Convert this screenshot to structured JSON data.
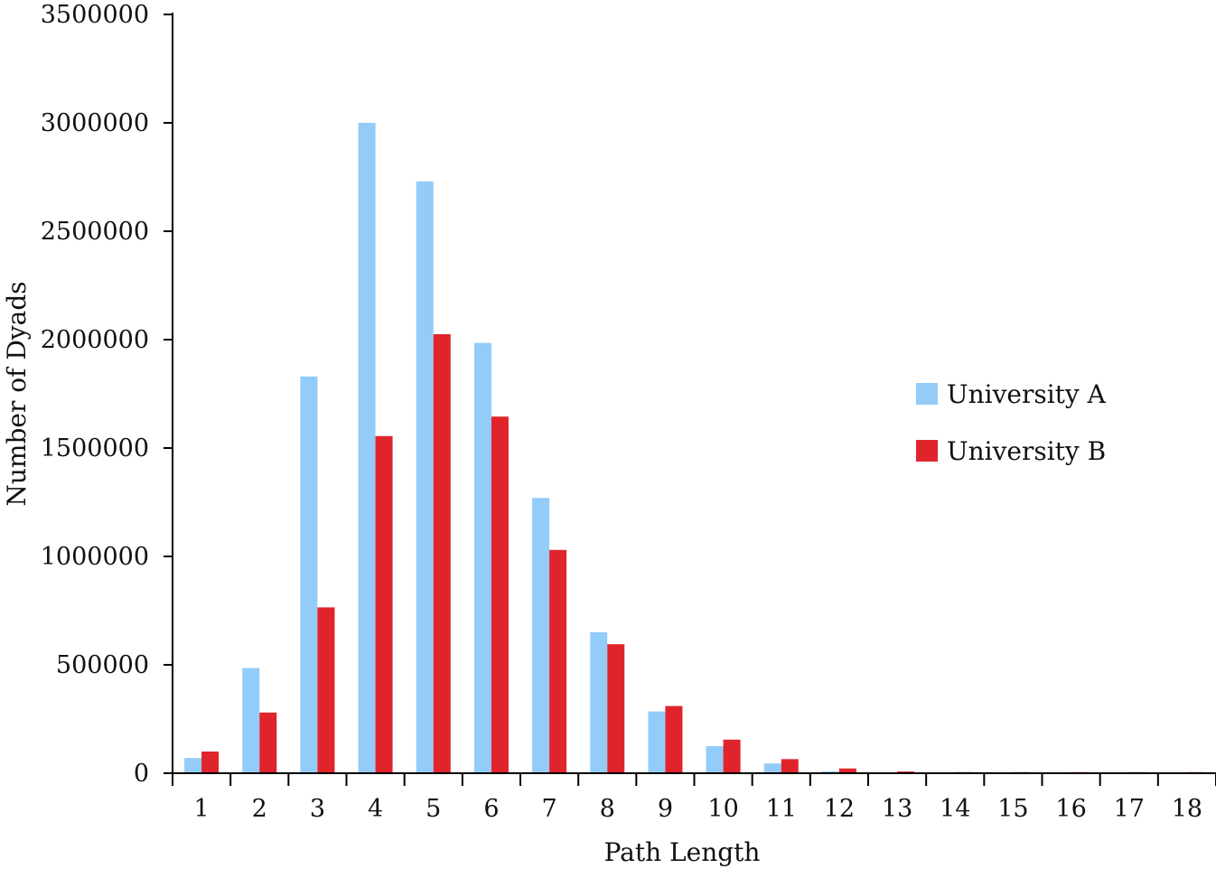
{
  "chart_data": {
    "type": "bar",
    "title": "",
    "xlabel": "Path Length",
    "ylabel": "Number of Dyads",
    "categories": [
      "1",
      "2",
      "3",
      "4",
      "5",
      "6",
      "7",
      "8",
      "9",
      "10",
      "11",
      "12",
      "13",
      "14",
      "15",
      "16",
      "17",
      "18"
    ],
    "ylim": [
      0,
      3500000
    ],
    "yticks": [
      0,
      500000,
      1000000,
      1500000,
      2000000,
      2500000,
      3000000,
      3500000
    ],
    "ytick_labels": [
      "0",
      "500000",
      "1000000",
      "1500000",
      "2000000",
      "2500000",
      "3000000",
      "3500000"
    ],
    "grid": false,
    "legend_position": "right",
    "series": [
      {
        "name": "University A",
        "color": "#93cbf9",
        "values": [
          70000,
          485000,
          1830000,
          3000000,
          2730000,
          1985000,
          1270000,
          650000,
          285000,
          125000,
          45000,
          8000,
          3000,
          2000,
          2000,
          2000,
          2000,
          2000
        ]
      },
      {
        "name": "University B",
        "color": "#e0242c",
        "values": [
          100000,
          280000,
          765000,
          1555000,
          2025000,
          1645000,
          1030000,
          595000,
          310000,
          155000,
          65000,
          22000,
          8000,
          5000,
          5000,
          5000,
          5000,
          5000
        ]
      }
    ]
  }
}
